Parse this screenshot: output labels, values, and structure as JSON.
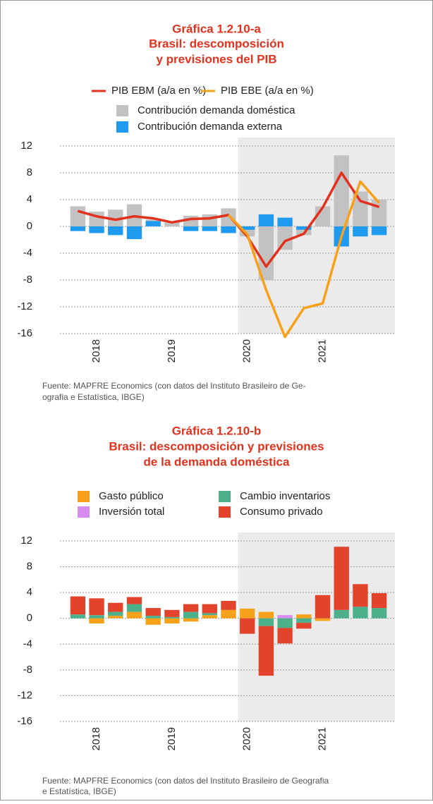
{
  "chart_data": [
    {
      "type": "combo",
      "title": [
        "Gráfica 1.2.10-a",
        "Brasil: descomposición",
        "y previsiones del PIB"
      ],
      "categories": [
        null,
        "2018",
        null,
        null,
        null,
        "2019",
        null,
        null,
        null,
        "2020",
        null,
        null,
        null,
        "2021",
        null,
        null,
        null
      ],
      "series": [
        {
          "name": "PIB EBM (a/a en %)",
          "kind": "line",
          "color": "#e2311d",
          "values": [
            2.3,
            1.5,
            1.0,
            1.5,
            1.2,
            0.6,
            1.1,
            1.2,
            1.7,
            -1.5,
            -6.0,
            -2.2,
            -1.1,
            2.8,
            8.0,
            3.8,
            2.9
          ]
        },
        {
          "name": "PIB EBE (a/a en %)",
          "kind": "line",
          "color": "#f7a11a",
          "values": [
            null,
            null,
            null,
            null,
            null,
            null,
            null,
            null,
            1.7,
            -1.2,
            -9.5,
            -16.5,
            -12.2,
            -11.5,
            -1.5,
            6.7,
            3.5
          ]
        },
        {
          "name": "Contribución demanda doméstica",
          "kind": "bar",
          "color": "#c2c2c2",
          "values": [
            3.0,
            2.2,
            2.5,
            3.3,
            1.0,
            0.6,
            1.6,
            1.8,
            2.7,
            -1.5,
            -8.0,
            -3.5,
            -1.3,
            3.0,
            10.6,
            5.2,
            4.0
          ]
        },
        {
          "name": "Contribución demanda externa",
          "kind": "bar",
          "color": "#1e9bf0",
          "values": [
            -0.7,
            -1.0,
            -1.3,
            -1.9,
            0.8,
            0,
            -0.7,
            -0.7,
            -1.0,
            -0.5,
            1.8,
            1.3,
            -0.5,
            0,
            -3.0,
            -1.5,
            -1.3
          ]
        }
      ],
      "ylim": [
        -16,
        12
      ],
      "yticks": [
        12,
        8,
        4,
        0,
        -4,
        -8,
        -12,
        -16
      ],
      "grid": true,
      "source": [
        "Fuente: MAPFRE Economics (con datos del Instituto Brasileiro de Ge-",
        "ografia e Estatística, IBGE)"
      ]
    },
    {
      "type": "stacked_bar",
      "title": [
        "Gráfica 1.2.10-b",
        "Brasil: descomposición y previsiones",
        "de la demanda doméstica"
      ],
      "categories": [
        null,
        "2018",
        null,
        null,
        null,
        "2019",
        null,
        null,
        null,
        "2020",
        null,
        null,
        null,
        "2021",
        null,
        null,
        null
      ],
      "series": [
        {
          "name": "Gasto público",
          "color": "#f7a11a",
          "values": [
            0,
            -0.8,
            0.4,
            1.0,
            -1.0,
            -0.8,
            -0.5,
            0.5,
            1.3,
            1.5,
            1.0,
            0,
            0.6,
            -0.4,
            0,
            0,
            0
          ]
        },
        {
          "name": "Inversión total",
          "color": "#d98cf0",
          "values": [
            0,
            0,
            0,
            0,
            0,
            0,
            0,
            0,
            0,
            0,
            0,
            0.5,
            0,
            0,
            0,
            0,
            0
          ]
        },
        {
          "name": "Cambio inventarios",
          "color": "#4cb08a",
          "values": [
            0.6,
            0.5,
            0.6,
            1.2,
            0.4,
            0.2,
            1.0,
            0.3,
            0,
            0,
            -1.2,
            -1.5,
            -0.7,
            0,
            1.3,
            1.8,
            1.6
          ]
        },
        {
          "name": "Consumo privado",
          "color": "#e2432a",
          "values": [
            2.8,
            2.6,
            1.4,
            1.1,
            1.2,
            1.1,
            1.2,
            1.4,
            1.4,
            -2.4,
            -7.7,
            -2.4,
            -0.9,
            3.6,
            9.8,
            3.5,
            2.3
          ]
        }
      ],
      "ylim": [
        -16,
        12
      ],
      "yticks": [
        12,
        8,
        4,
        0,
        -4,
        -8,
        -12,
        -16
      ],
      "grid": true,
      "source": [
        "Fuente: MAPFRE Economics (con datos del Instituto Brasileiro de Geografia",
        "e Estatística, IBGE)"
      ]
    }
  ]
}
